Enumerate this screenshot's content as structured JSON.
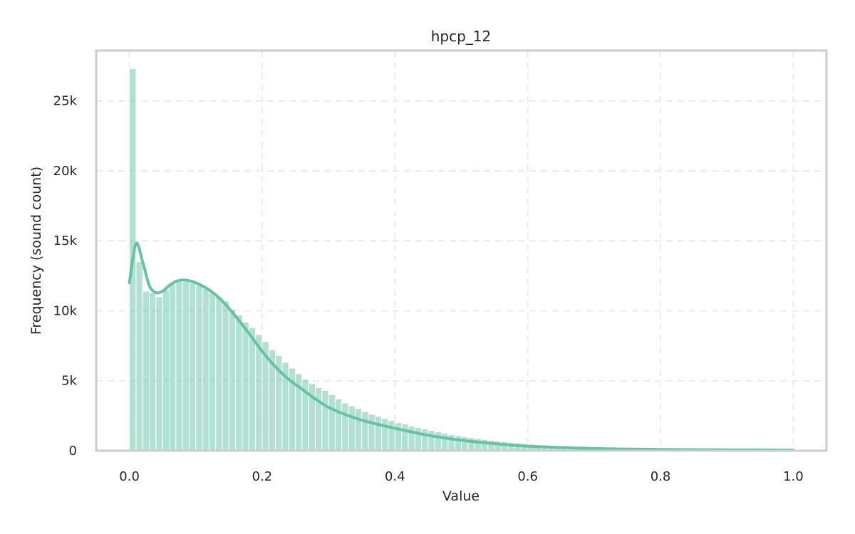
{
  "chart_data": {
    "type": "bar",
    "subtype": "histogram",
    "title": "hpcp_12",
    "xlabel": "Value",
    "ylabel": "Frequency (sound count)",
    "xlim": [
      -0.05,
      1.05
    ],
    "ylim": [
      0,
      28600
    ],
    "x_ticks": [
      0.0,
      0.2,
      0.4,
      0.6,
      0.8,
      1.0
    ],
    "x_tick_labels": [
      "0.0",
      "0.2",
      "0.4",
      "0.6",
      "0.8",
      "1.0"
    ],
    "y_ticks": [
      0,
      5000,
      10000,
      15000,
      20000,
      25000
    ],
    "y_tick_labels": [
      "0",
      "5k",
      "10k",
      "15k",
      "20k",
      "25k"
    ],
    "grid": true,
    "bin_start": 0.0,
    "bin_width": 0.01,
    "counts": [
      27300,
      13500,
      11400,
      11300,
      11000,
      11500,
      11900,
      12100,
      12100,
      12000,
      11800,
      11600,
      11300,
      11000,
      10700,
      10100,
      9700,
      9200,
      8800,
      8300,
      7800,
      7200,
      6800,
      6300,
      5900,
      5500,
      5100,
      4800,
      4500,
      4300,
      4000,
      3700,
      3400,
      3200,
      3000,
      2800,
      2600,
      2450,
      2300,
      2150,
      2000,
      1900,
      1750,
      1650,
      1550,
      1450,
      1350,
      1250,
      1150,
      1070,
      1000,
      930,
      860,
      800,
      740,
      690,
      640,
      590,
      550,
      510,
      470,
      430,
      400,
      370,
      340,
      310,
      290,
      270,
      250,
      230,
      210,
      195,
      180,
      165,
      152,
      140,
      130,
      120,
      110,
      102,
      95,
      88,
      82,
      76,
      71,
      66,
      62,
      58,
      55,
      52,
      50,
      48,
      47,
      46,
      46,
      45,
      45,
      44,
      44,
      44
    ],
    "kde": {
      "x": [
        0.0,
        0.01,
        0.02,
        0.03,
        0.04,
        0.05,
        0.06,
        0.07,
        0.08,
        0.09,
        0.1,
        0.12,
        0.14,
        0.16,
        0.18,
        0.2,
        0.22,
        0.24,
        0.26,
        0.28,
        0.3,
        0.33,
        0.36,
        0.4,
        0.45,
        0.5,
        0.55,
        0.6,
        0.7,
        0.8,
        0.9,
        1.0
      ],
      "y": [
        12000,
        14800,
        13500,
        11800,
        11300,
        11400,
        11800,
        12100,
        12200,
        12150,
        12000,
        11500,
        10700,
        9600,
        8400,
        7100,
        6000,
        5100,
        4400,
        3700,
        3100,
        2500,
        2050,
        1600,
        1100,
        750,
        500,
        320,
        160,
        90,
        60,
        40
      ]
    },
    "bar_color": "#66c2a5",
    "line_color": "#66c2a5"
  }
}
